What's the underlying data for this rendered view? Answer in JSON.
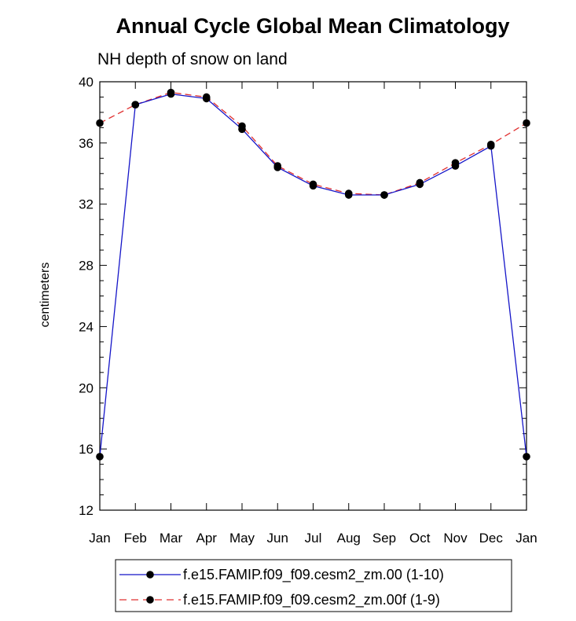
{
  "chart_data": {
    "type": "line",
    "title": "Annual Cycle Global Mean Climatology",
    "subtitle": "NH depth of snow on land",
    "xlabel": "",
    "ylabel": "centimeters",
    "ylim": [
      12,
      40
    ],
    "yticks": [
      "12",
      "16",
      "20",
      "24",
      "28",
      "32",
      "36",
      "40"
    ],
    "categories": [
      "Jan",
      "Feb",
      "Mar",
      "Apr",
      "May",
      "Jun",
      "Jul",
      "Aug",
      "Sep",
      "Oct",
      "Nov",
      "Dec",
      "Jan"
    ],
    "grid": false,
    "legend_position": "bottom",
    "series": [
      {
        "name": "f.e15.FAMIP.f09_f09.cesm2_zm.00 (1-10)",
        "color": "#1515c8",
        "dash": "solid",
        "values": [
          15.5,
          38.5,
          39.2,
          38.9,
          36.9,
          34.4,
          33.2,
          32.6,
          32.6,
          33.3,
          34.5,
          35.8,
          15.5
        ]
      },
      {
        "name": "f.e15.FAMIP.f09_f09.cesm2_zm.00f (1-9)",
        "color": "#e03030",
        "dash": "dashed",
        "values": [
          37.3,
          38.5,
          39.3,
          39.0,
          37.1,
          34.5,
          33.3,
          32.7,
          32.6,
          33.4,
          34.7,
          35.9,
          37.3
        ]
      }
    ]
  }
}
